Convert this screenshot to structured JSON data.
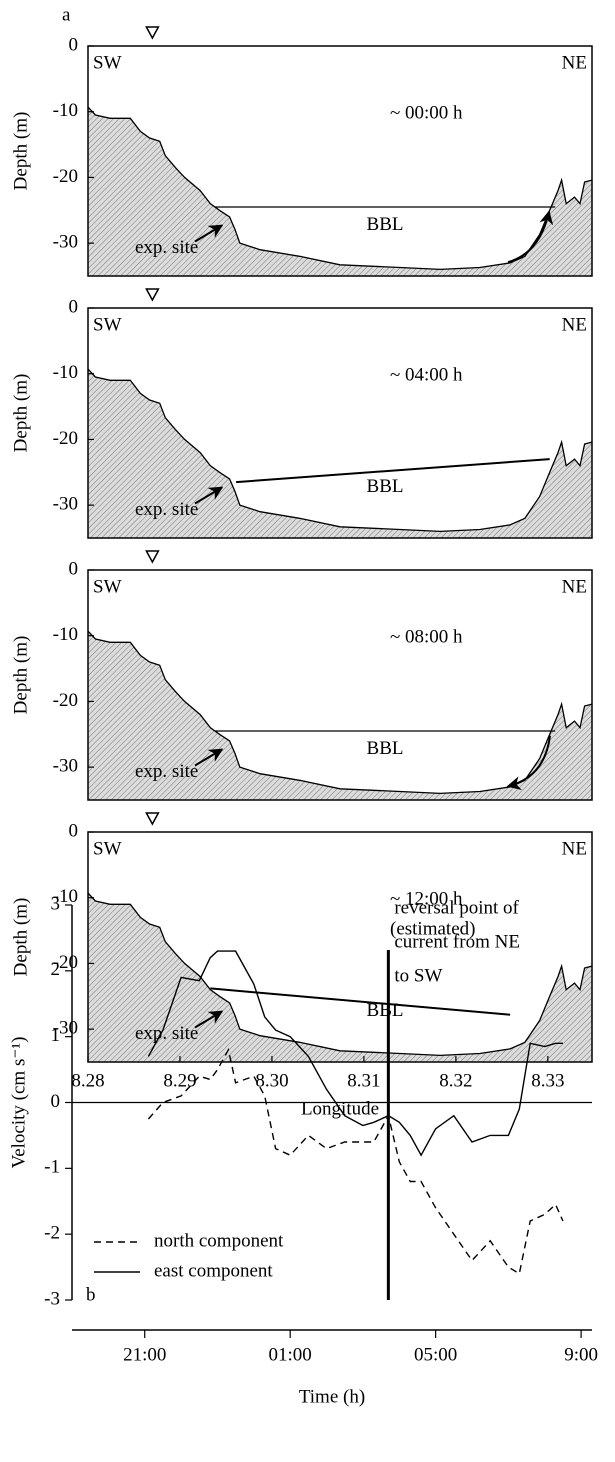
{
  "chart_data": [
    {
      "type": "area",
      "panel_label": "a",
      "ylabel": "Depth (m)",
      "annotations": {
        "left": "SW",
        "right": "NE",
        "time": [
          "~ 00:00 h"
        ],
        "layer": "BBL",
        "site": "exp. site"
      },
      "x": [
        8.28,
        8.2808,
        8.2824,
        8.2846,
        8.2857,
        8.2867,
        8.2878,
        8.2884,
        8.2895,
        8.2905,
        8.2922,
        8.2933,
        8.2943,
        8.2954,
        8.296,
        8.2965,
        8.2987,
        8.303,
        8.3074,
        8.3139,
        8.3183,
        8.3226,
        8.3259,
        8.3275,
        8.3291,
        8.3302,
        8.3311,
        8.3315,
        8.332,
        8.3329,
        8.3335,
        8.334,
        8.3348
      ],
      "values": [
        -9.3,
        -10.5,
        -11,
        -11,
        -13,
        -14,
        -14.5,
        -16.7,
        -18.5,
        -20,
        -22,
        -24,
        -25,
        -26,
        -28,
        -30,
        -31,
        -32,
        -33.3,
        -33.7,
        -34,
        -33.7,
        -33,
        -32,
        -28.7,
        -25,
        -22,
        -20.4,
        -24,
        -23,
        -24,
        -20.7,
        -20.4
      ],
      "bbl": {
        "x": [
          8.2938,
          8.3308
        ],
        "values": [
          -24.5,
          -24.5
        ]
      },
      "site_x": 8.287,
      "xlim": [
        8.28,
        8.3348
      ],
      "ylim": [
        -35,
        0
      ],
      "yticks": [
        0,
        -10,
        -20,
        -30
      ]
    },
    {
      "type": "area",
      "ylabel": "Depth (m)",
      "annotations": {
        "left": "SW",
        "right": "NE",
        "time": [
          "~ 04:00 h"
        ],
        "layer": "BBL",
        "site": "exp. site"
      },
      "x": [
        8.28,
        8.2808,
        8.2824,
        8.2846,
        8.2857,
        8.2867,
        8.2878,
        8.2884,
        8.2895,
        8.2905,
        8.2922,
        8.2933,
        8.2943,
        8.2954,
        8.296,
        8.2965,
        8.2987,
        8.303,
        8.3074,
        8.3139,
        8.3183,
        8.3226,
        8.3259,
        8.3275,
        8.3291,
        8.3302,
        8.3311,
        8.3315,
        8.332,
        8.3329,
        8.3335,
        8.334,
        8.3348
      ],
      "values": [
        -9.3,
        -10.5,
        -11,
        -11,
        -13,
        -14,
        -14.5,
        -16.7,
        -18.5,
        -20,
        -22,
        -24,
        -25,
        -26,
        -28,
        -30,
        -31,
        -32,
        -33.3,
        -33.7,
        -34,
        -33.7,
        -33,
        -32,
        -28.7,
        -25,
        -22,
        -20.4,
        -24,
        -23,
        -24,
        -20.7,
        -20.4
      ],
      "bbl": {
        "x": [
          8.2961,
          8.3302
        ],
        "values": [
          -26.5,
          -23
        ]
      },
      "site_x": 8.287,
      "xlim": [
        8.28,
        8.3348
      ],
      "ylim": [
        -35,
        0
      ],
      "yticks": [
        0,
        -10,
        -20,
        -30
      ]
    },
    {
      "type": "area",
      "ylabel": "Depth (m)",
      "annotations": {
        "left": "SW",
        "right": "NE",
        "time": [
          "~ 08:00 h"
        ],
        "layer": "BBL",
        "site": "exp. site"
      },
      "x": [
        8.28,
        8.2808,
        8.2824,
        8.2846,
        8.2857,
        8.2867,
        8.2878,
        8.2884,
        8.2895,
        8.2905,
        8.2922,
        8.2933,
        8.2943,
        8.2954,
        8.296,
        8.2965,
        8.2987,
        8.303,
        8.3074,
        8.3139,
        8.3183,
        8.3226,
        8.3259,
        8.3275,
        8.3291,
        8.3302,
        8.3311,
        8.3315,
        8.332,
        8.3329,
        8.3335,
        8.334,
        8.3348
      ],
      "values": [
        -9.3,
        -10.5,
        -11,
        -11,
        -13,
        -14,
        -14.5,
        -16.7,
        -18.5,
        -20,
        -22,
        -24,
        -25,
        -26,
        -28,
        -30,
        -31,
        -32,
        -33.3,
        -33.7,
        -34,
        -33.7,
        -33,
        -32,
        -28.7,
        -25,
        -22,
        -20.4,
        -24,
        -23,
        -24,
        -20.7,
        -20.4
      ],
      "bbl": {
        "x": [
          8.2938,
          8.3308
        ],
        "values": [
          -24.5,
          -24.5
        ]
      },
      "site_x": 8.287,
      "xlim": [
        8.28,
        8.3348
      ],
      "ylim": [
        -35,
        0
      ],
      "yticks": [
        0,
        -10,
        -20,
        -30
      ]
    },
    {
      "type": "area",
      "ylabel": "Depth (m)",
      "xlabel": "Longitude",
      "annotations": {
        "left": "SW",
        "right": "NE",
        "time": [
          "~ 12:00 h",
          "(estimated)"
        ],
        "layer": "BBL",
        "site": "exp. site"
      },
      "x": [
        8.28,
        8.2808,
        8.2824,
        8.2846,
        8.2857,
        8.2867,
        8.2878,
        8.2884,
        8.2895,
        8.2905,
        8.2922,
        8.2933,
        8.2943,
        8.2954,
        8.296,
        8.2965,
        8.2987,
        8.303,
        8.3074,
        8.3139,
        8.3183,
        8.3226,
        8.3259,
        8.3275,
        8.3291,
        8.3302,
        8.3311,
        8.3315,
        8.332,
        8.3329,
        8.3335,
        8.334,
        8.3348
      ],
      "values": [
        -9.3,
        -10.5,
        -11,
        -11,
        -13,
        -14,
        -14.5,
        -16.7,
        -18.5,
        -20,
        -22,
        -24,
        -25,
        -26,
        -28,
        -30,
        -31,
        -32,
        -33.3,
        -33.7,
        -34,
        -33.7,
        -33,
        -32,
        -28.7,
        -25,
        -22,
        -20.4,
        -24,
        -23,
        -24,
        -20.7,
        -20.4
      ],
      "bbl": {
        "x": [
          8.2933,
          8.3259
        ],
        "values": [
          -23.8,
          -27.8
        ]
      },
      "site_x": 8.287,
      "xlim": [
        8.28,
        8.3348
      ],
      "ylim": [
        -35,
        0
      ],
      "yticks": [
        0,
        -10,
        -20,
        -30
      ],
      "xticks": [
        8.28,
        8.29,
        {
          "value": 8.3,
          "label": "8.30"
        },
        8.31,
        8.32,
        8.33
      ]
    },
    {
      "type": "line",
      "panel_label": "b",
      "xlabel": "Time (h)",
      "ylabel": "Velocity (cm s⁻¹)",
      "x": [
        21.1,
        21.5,
        22,
        22.5,
        22.8,
        23,
        23.3,
        23.5,
        24,
        24.3,
        24.6,
        25,
        25.5,
        26,
        26.5,
        27,
        27.3,
        27.7,
        28,
        28.3,
        28.6,
        29,
        29.5,
        30,
        30.5,
        31,
        31.3,
        31.6,
        32,
        32.3,
        32.5
      ],
      "series": [
        {
          "name": "north component",
          "color": "#000000",
          "dash": "dashed",
          "values": [
            -0.25,
            0,
            0.1,
            0.4,
            0.35,
            0.5,
            0.8,
            0.3,
            0.4,
            0.1,
            -0.7,
            -0.8,
            -0.5,
            -0.7,
            -0.6,
            -0.6,
            -0.6,
            -0.2,
            -0.9,
            -1.2,
            -1.2,
            -1.6,
            -2.0,
            -2.4,
            -2.1,
            -2.5,
            -2.6,
            -1.8,
            -1.7,
            -1.55,
            -1.8
          ]
        },
        {
          "name": "east component",
          "color": "#000000",
          "dash": "solid",
          "values": [
            0.7,
            1.1,
            1.9,
            1.85,
            2.2,
            2.3,
            2.3,
            2.3,
            1.8,
            1.3,
            1.1,
            1.0,
            0.7,
            0.2,
            -0.2,
            -0.35,
            -0.3,
            -0.2,
            -0.3,
            -0.5,
            -0.8,
            -0.4,
            -0.2,
            -0.6,
            -0.5,
            -0.5,
            -0.1,
            0.9,
            0.85,
            0.9,
            0.9
          ]
        }
      ],
      "xlim": [
        19,
        33.3
      ],
      "ylim": [
        -3,
        3
      ],
      "yticks": [
        -3,
        -2,
        -1,
        0,
        1,
        2,
        3
      ],
      "xticks": [
        {
          "value": 21,
          "label": "21:00"
        },
        {
          "value": 25,
          "label": "01:00"
        },
        {
          "value": 29,
          "label": "05:00"
        },
        {
          "value": 33,
          "label": "9:00"
        }
      ],
      "hline": 0,
      "vline": 27.7,
      "annotation": [
        "reversal point of",
        "current from NE",
        "to SW"
      ],
      "legend": "lower left"
    }
  ]
}
